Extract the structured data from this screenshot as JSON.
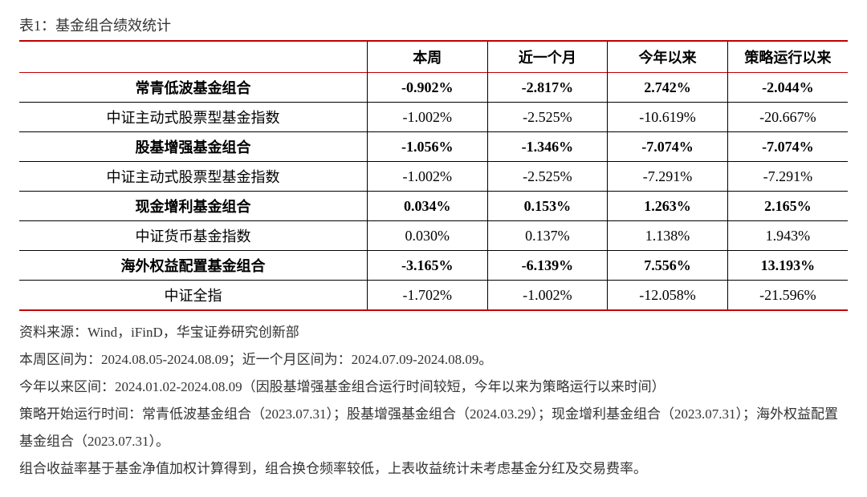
{
  "title": "表1：基金组合绩效统计",
  "table": {
    "columns": [
      "",
      "本周",
      "近一个月",
      "今年以来",
      "策略运行以来"
    ],
    "rows": [
      {
        "bold": true,
        "cells": [
          "常青低波基金组合",
          "-0.902%",
          "-2.817%",
          "2.742%",
          "-2.044%"
        ]
      },
      {
        "bold": false,
        "cells": [
          "中证主动式股票型基金指数",
          "-1.002%",
          "-2.525%",
          "-10.619%",
          "-20.667%"
        ]
      },
      {
        "bold": true,
        "cells": [
          "股基增强基金组合",
          "-1.056%",
          "-1.346%",
          "-7.074%",
          "-7.074%"
        ]
      },
      {
        "bold": false,
        "cells": [
          "中证主动式股票型基金指数",
          "-1.002%",
          "-2.525%",
          "-7.291%",
          "-7.291%"
        ]
      },
      {
        "bold": true,
        "cells": [
          "现金增利基金组合",
          "0.034%",
          "0.153%",
          "1.263%",
          "2.165%"
        ]
      },
      {
        "bold": false,
        "cells": [
          "中证货币基金指数",
          "0.030%",
          "0.137%",
          "1.138%",
          "1.943%"
        ]
      },
      {
        "bold": true,
        "cells": [
          "海外权益配置基金组合",
          "-3.165%",
          "-6.139%",
          "7.556%",
          "13.193%"
        ]
      },
      {
        "bold": false,
        "cells": [
          "中证全指",
          "-1.702%",
          "-1.002%",
          "-12.058%",
          "-21.596%"
        ]
      }
    ],
    "border_color": "#000000",
    "accent_color": "#c00000",
    "background_color": "#ffffff",
    "fontsize": 18
  },
  "notes": {
    "line1": "资料来源：Wind，iFinD，华宝证券研究创新部",
    "line2": "本周区间为：2024.08.05-2024.08.09；近一个月区间为：2024.07.09-2024.08.09。",
    "line3": "今年以来区间：2024.01.02-2024.08.09（因股基增强基金组合运行时间较短，今年以来为策略运行以来时间）",
    "line4": "策略开始运行时间：常青低波基金组合（2023.07.31）；股基增强基金组合（2024.03.29）；现金增利基金组合（2023.07.31）；海外权益配置基金组合（2023.07.31）。",
    "line5": "组合收益率基于基金净值加权计算得到，组合换仓频率较低，上表收益统计未考虑基金分红及交易费率。"
  }
}
